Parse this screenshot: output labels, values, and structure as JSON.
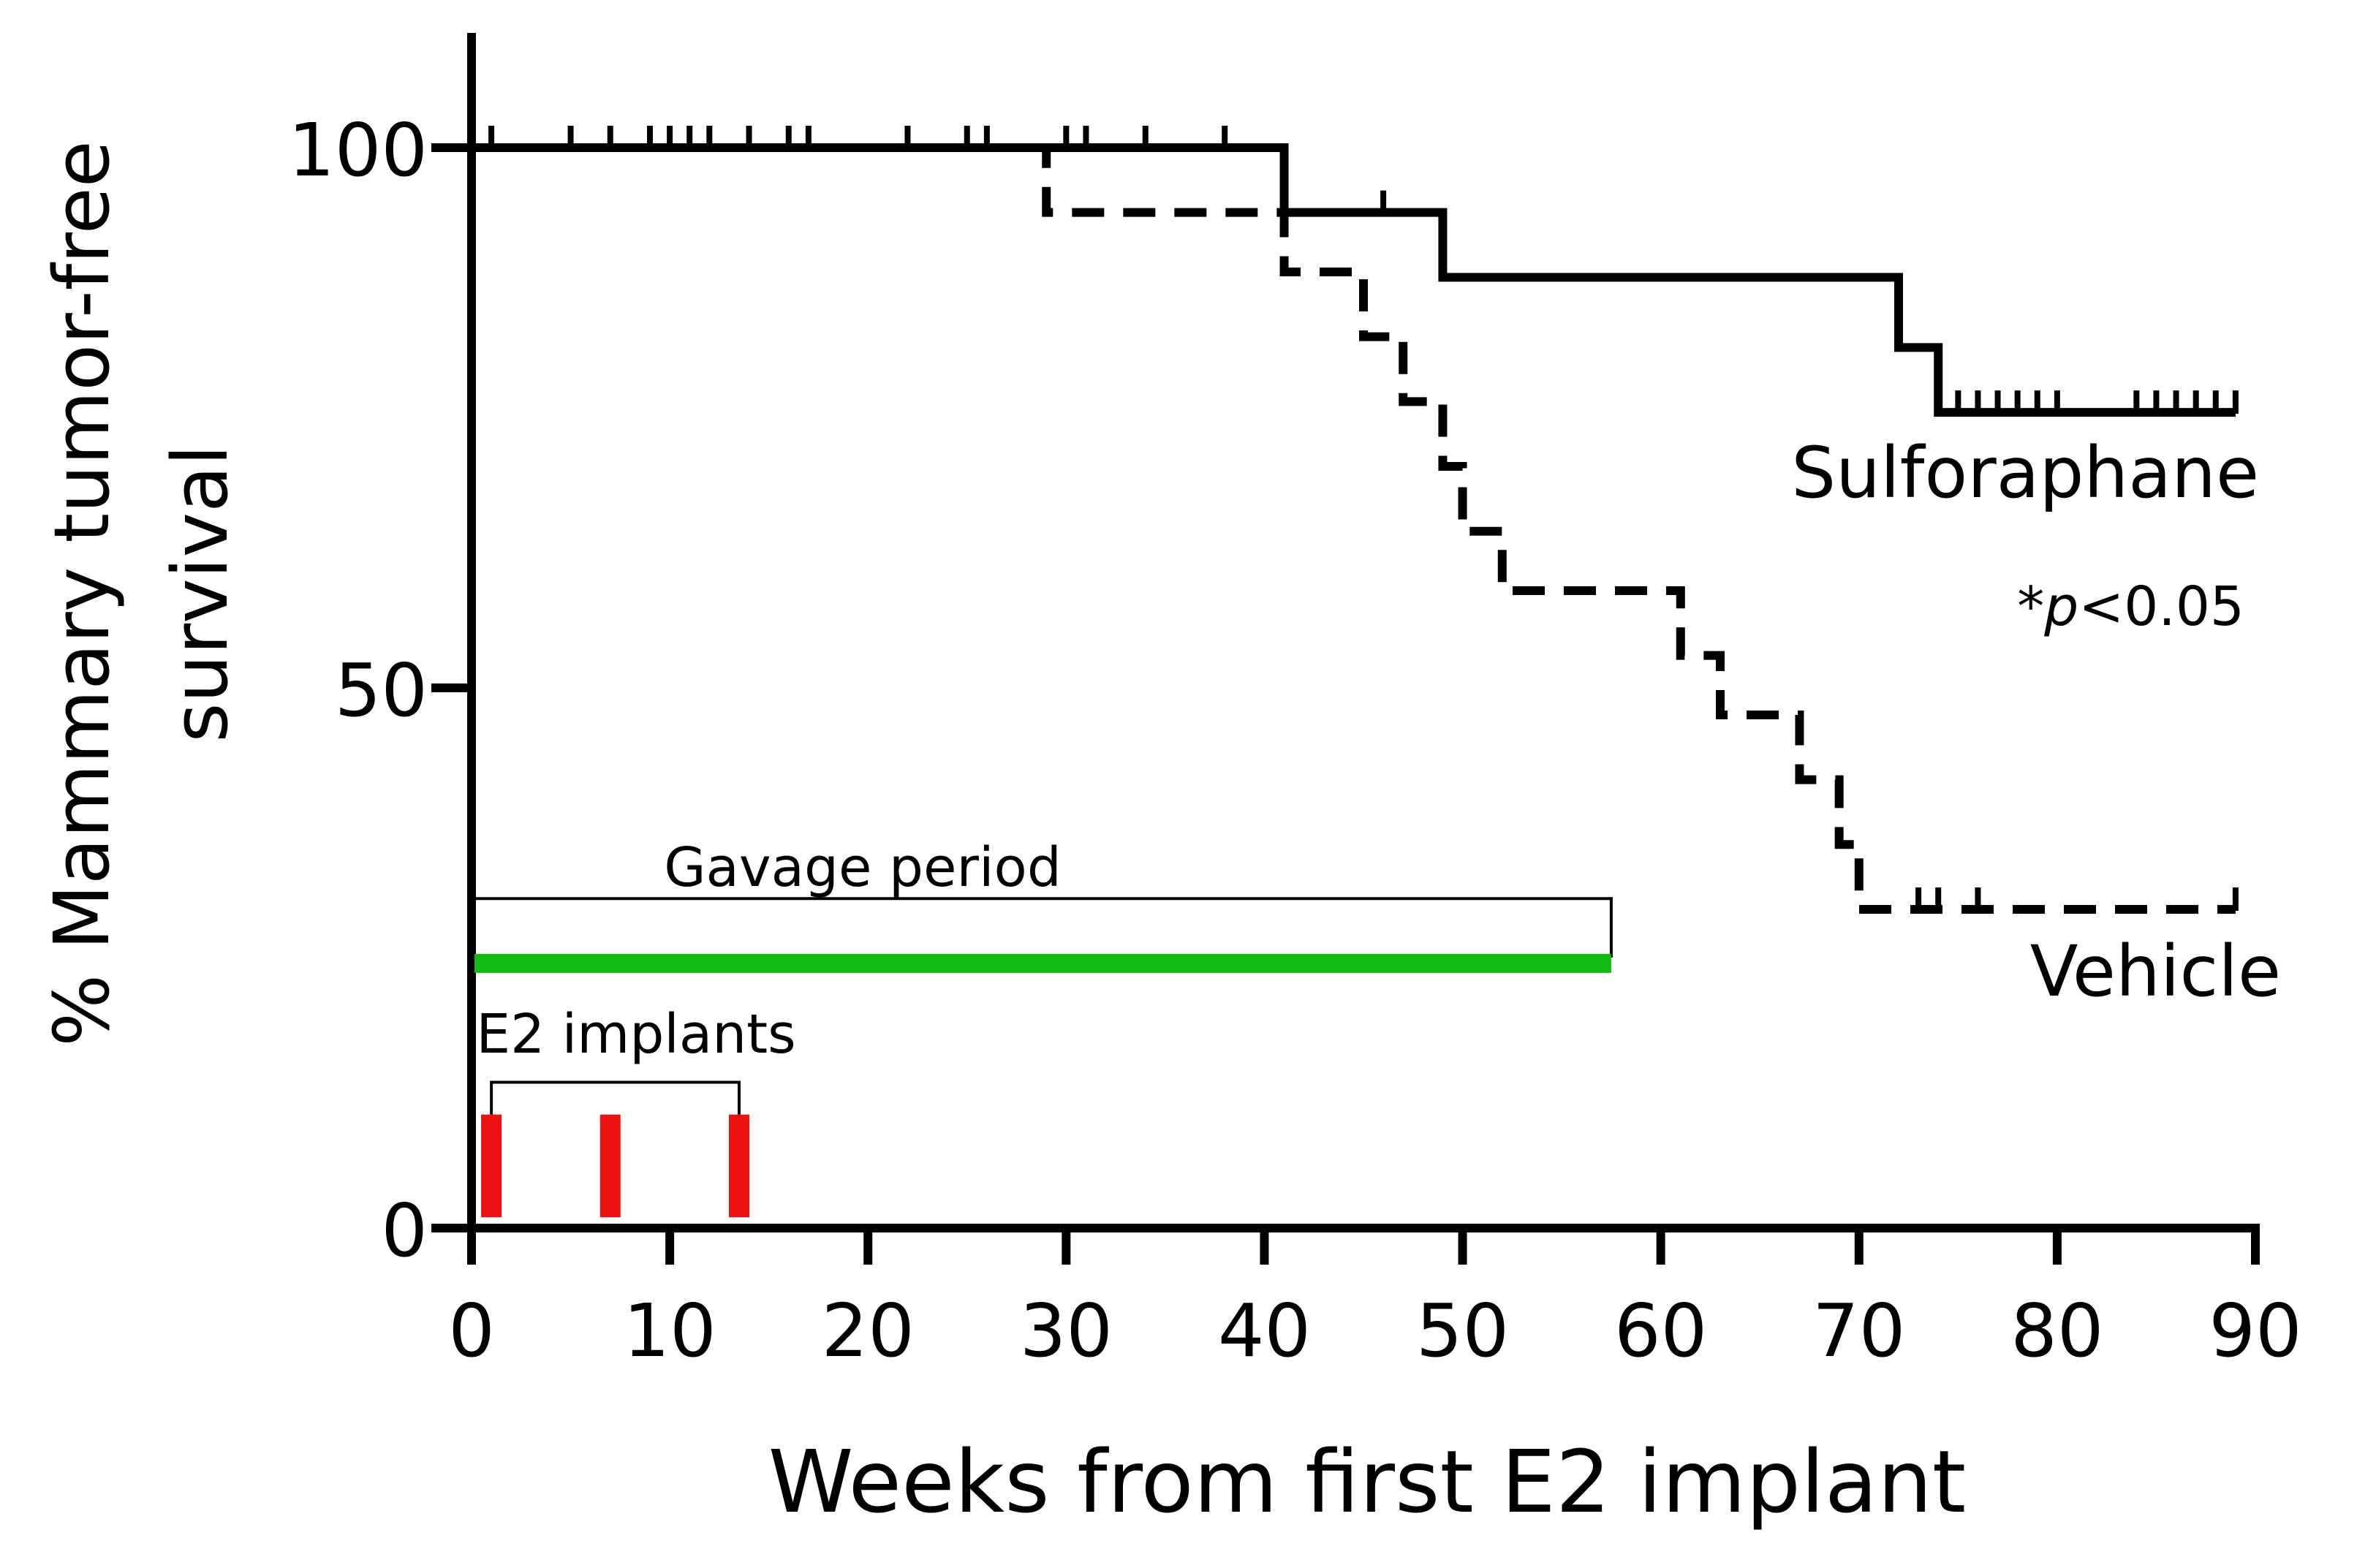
{
  "chart_data": {
    "type": "line",
    "subtype": "kaplan-meier",
    "title": "",
    "xlabel": "Weeks from first E2 implant",
    "ylabel_line1": "% Mammary tumor-free",
    "ylabel_line2": "survival",
    "xlim": [
      0,
      90
    ],
    "ylim": [
      0,
      110
    ],
    "xticks": [
      0,
      10,
      20,
      30,
      40,
      50,
      60,
      70,
      80,
      90
    ],
    "yticks": [
      0,
      50,
      100
    ],
    "series": [
      {
        "name": "Sulforaphane",
        "style": "solid",
        "color": "#000000",
        "steps": [
          [
            0,
            100
          ],
          [
            41,
            100
          ],
          [
            41,
            94
          ],
          [
            49,
            94
          ],
          [
            49,
            88
          ],
          [
            72,
            88
          ],
          [
            72,
            81.5
          ],
          [
            74,
            81.5
          ],
          [
            74,
            75.5
          ],
          [
            89,
            75.5
          ]
        ],
        "censored": [
          [
            1,
            100
          ],
          [
            5,
            100
          ],
          [
            7,
            100
          ],
          [
            9,
            100
          ],
          [
            10,
            100
          ],
          [
            11,
            100
          ],
          [
            12,
            100
          ],
          [
            14,
            100
          ],
          [
            16,
            100
          ],
          [
            17,
            100
          ],
          [
            22,
            100
          ],
          [
            25,
            100
          ],
          [
            26,
            100
          ],
          [
            30,
            100
          ],
          [
            31,
            100
          ],
          [
            34,
            100
          ],
          [
            38,
            100
          ],
          [
            46,
            94
          ],
          [
            75,
            75.5
          ],
          [
            76,
            75.5
          ],
          [
            77,
            75.5
          ],
          [
            78,
            75.5
          ],
          [
            79,
            75.5
          ],
          [
            80,
            75.5
          ],
          [
            84,
            75.5
          ],
          [
            85,
            75.5
          ],
          [
            86,
            75.5
          ],
          [
            87,
            75.5
          ],
          [
            88,
            75.5
          ],
          [
            89,
            75.5
          ]
        ]
      },
      {
        "name": "Vehicle",
        "style": "dashed",
        "color": "#000000",
        "steps": [
          [
            0,
            100
          ],
          [
            29,
            100
          ],
          [
            29,
            94
          ],
          [
            41,
            94
          ],
          [
            41,
            88.5
          ],
          [
            45,
            88.5
          ],
          [
            45,
            82.5
          ],
          [
            47,
            82.5
          ],
          [
            47,
            76.5
          ],
          [
            49,
            76.5
          ],
          [
            49,
            70.5
          ],
          [
            50,
            70.5
          ],
          [
            50,
            64.5
          ],
          [
            52,
            64.5
          ],
          [
            52,
            59
          ],
          [
            61,
            59
          ],
          [
            61,
            53
          ],
          [
            63,
            53
          ],
          [
            63,
            47.5
          ],
          [
            67,
            47.5
          ],
          [
            67,
            41.5
          ],
          [
            69,
            41.5
          ],
          [
            69,
            35.5
          ],
          [
            70,
            35.5
          ],
          [
            70,
            29.5
          ],
          [
            89,
            29.5
          ]
        ],
        "censored": [
          [
            73,
            29.5
          ],
          [
            74,
            29.5
          ],
          [
            76,
            29.5
          ],
          [
            89,
            29.5
          ]
        ]
      }
    ],
    "annotations": {
      "sulforaphane_label": "Sulforaphane",
      "vehicle_label": "Vehicle",
      "pvalue_star": "*",
      "pvalue_p": "p",
      "pvalue_rest": "<0.05",
      "gavage_label": "Gavage period",
      "e2_label": "E2 implants"
    },
    "gavage_period": {
      "start": 0,
      "end": 57.5,
      "bar_level": 24.5,
      "bracket_level": 30.5,
      "color": "#11bb11"
    },
    "e2_implants": {
      "weeks": [
        1,
        7,
        13.5
      ],
      "bracket_level": 13.5,
      "bar_top": 10.5,
      "bar_bottom": 1,
      "color": "#ee1111"
    }
  }
}
